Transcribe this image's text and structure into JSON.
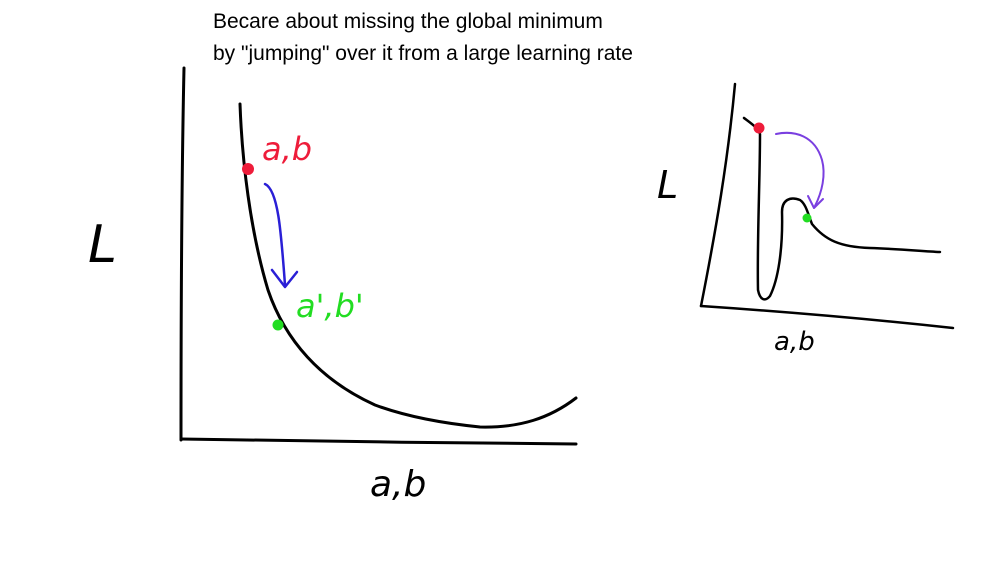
{
  "caption": {
    "line1": "Becare about missing the global minimum",
    "line2": "by \"jumping\" over it from a large learning rate"
  },
  "left_graph": {
    "y_axis_label": "L",
    "x_axis_label": "a,b",
    "start_point_label": "a,b",
    "end_point_label": "a',b'"
  },
  "right_graph": {
    "y_axis_label": "L",
    "x_axis_label": "a,b"
  },
  "colors": {
    "ink": "#000000",
    "start_point": "#ee1c3a",
    "end_point": "#22dd22",
    "arrow": "#2a1fd6",
    "arrow_right": "#7a3fe0"
  }
}
